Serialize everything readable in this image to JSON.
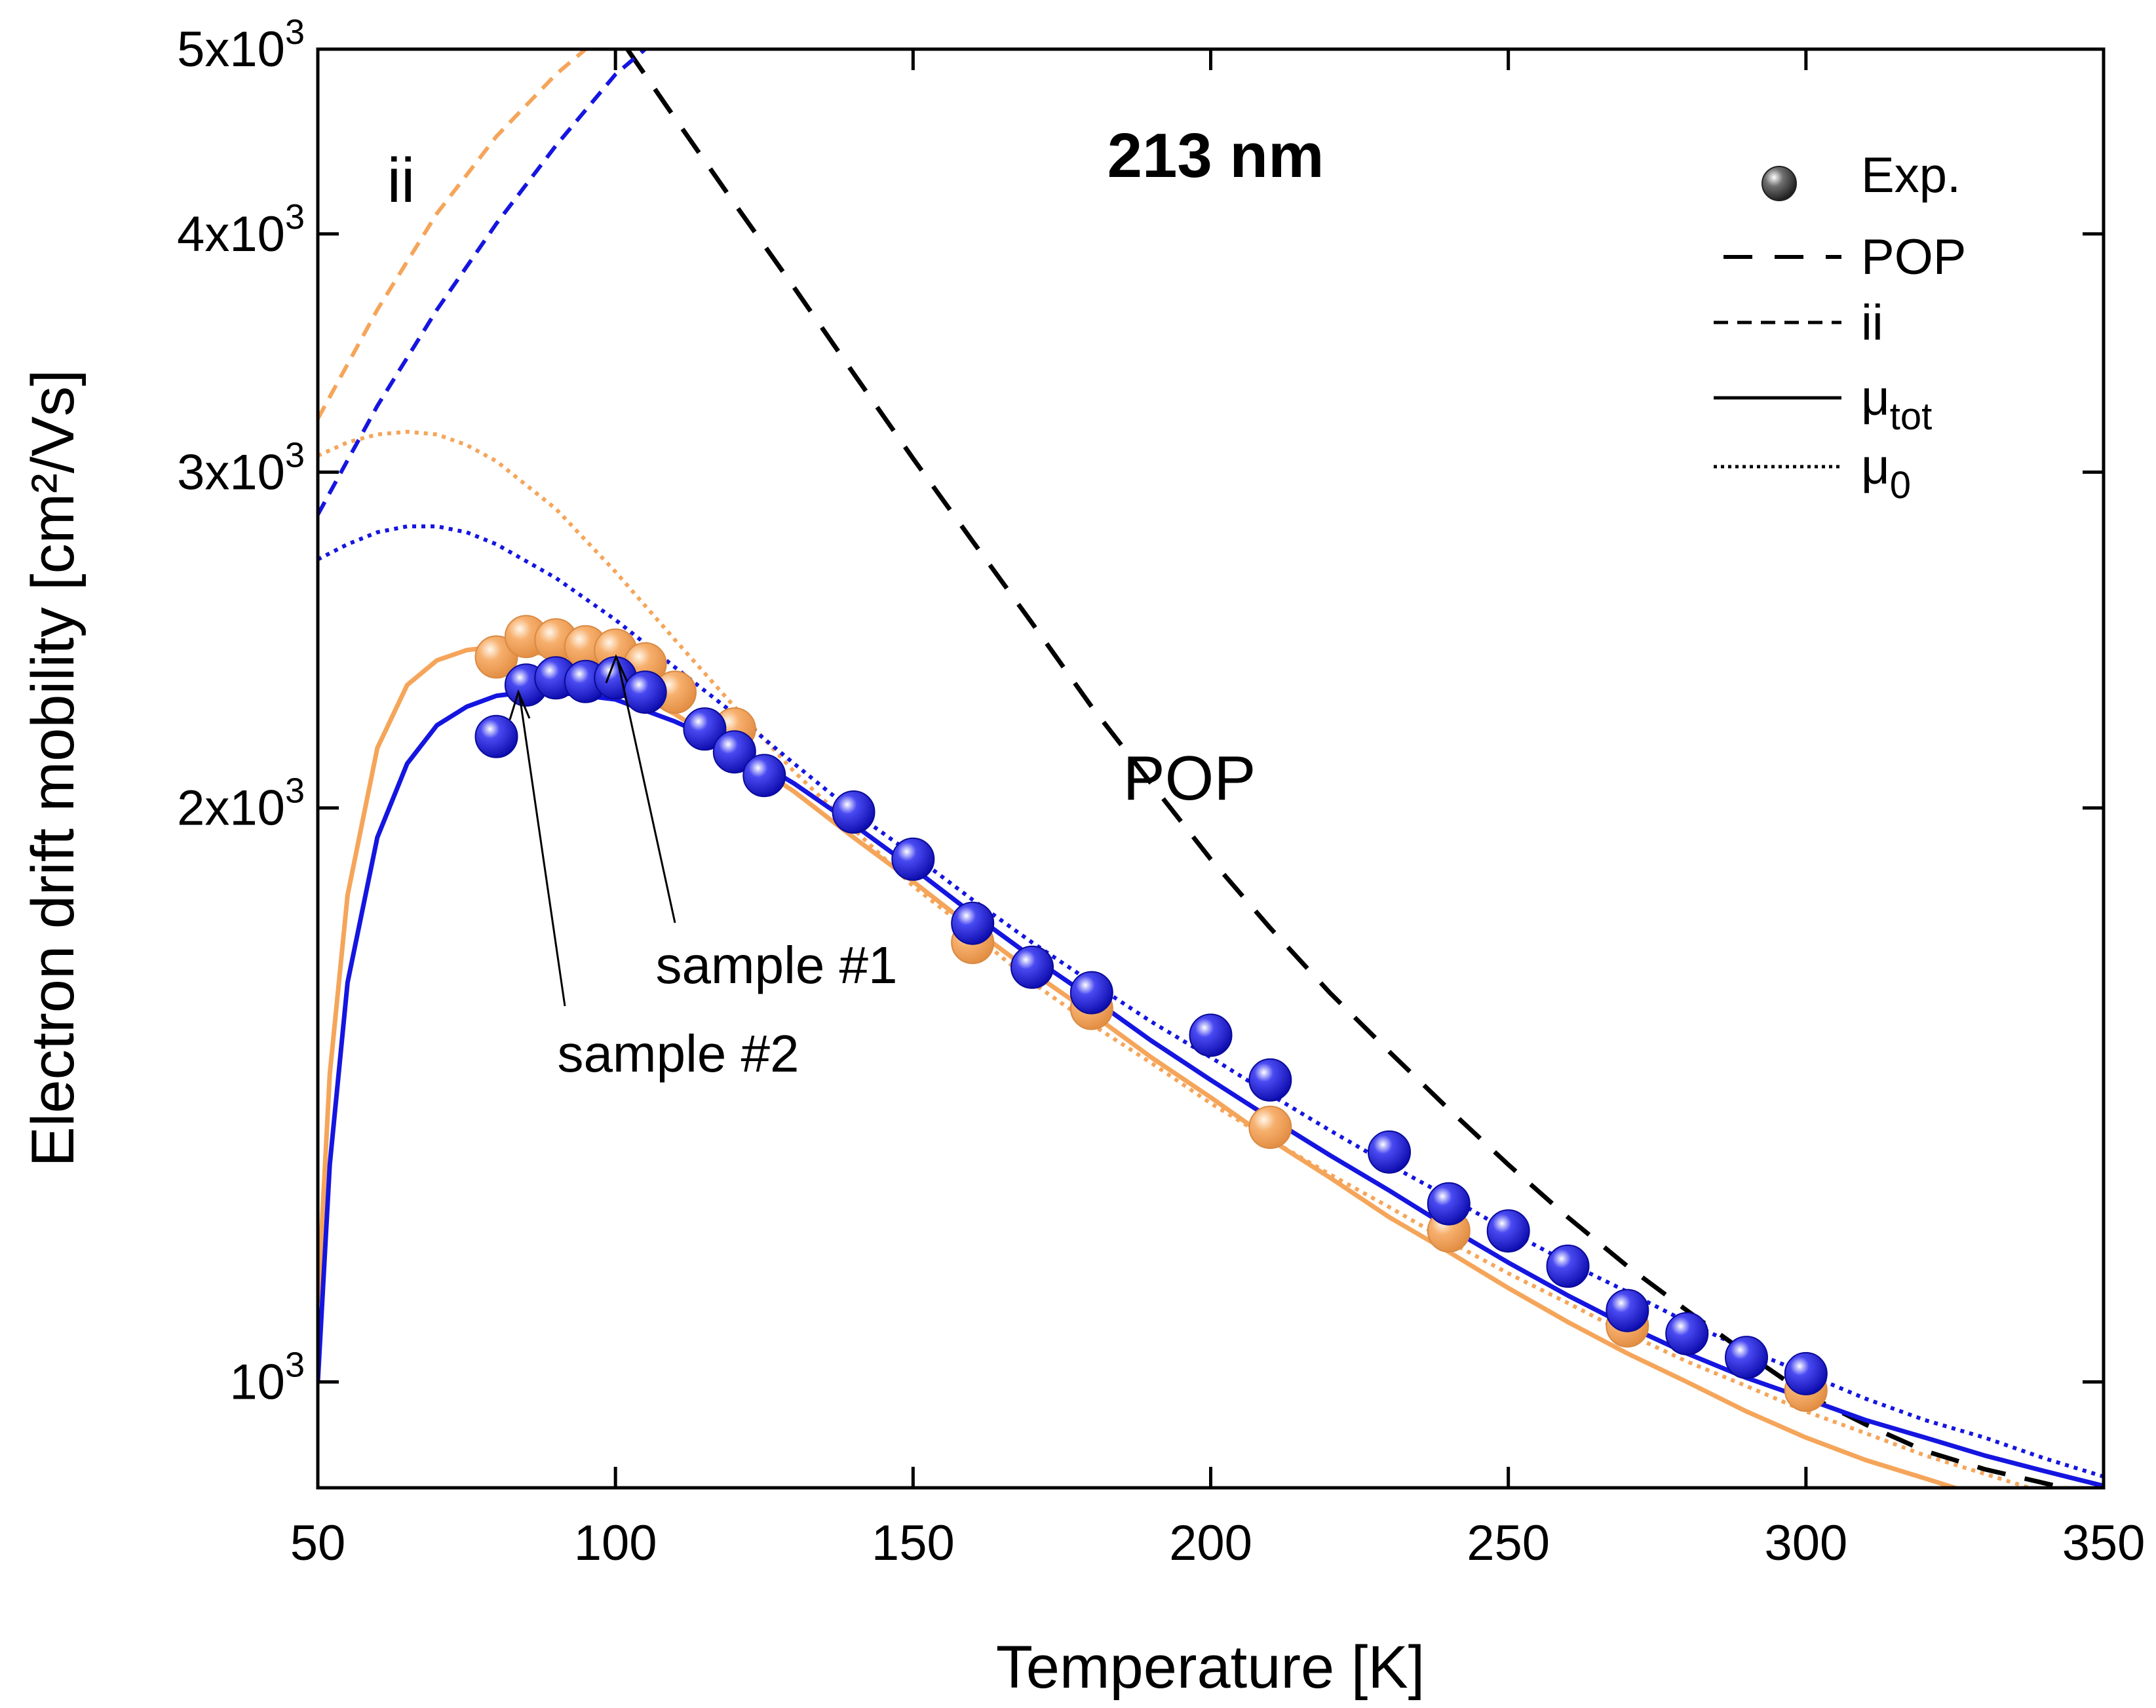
{
  "chart_data": {
    "type": "line",
    "title": "213 nm",
    "xlabel": "Temperature [K]",
    "ylabel": "Electron drift mobility [cm²/Vs]",
    "xlim": [
      50,
      350
    ],
    "ylim": [
      880,
      5000
    ],
    "yscale": "log",
    "x_ticks": [
      {
        "v": 50,
        "label": "50"
      },
      {
        "v": 100,
        "label": "100"
      },
      {
        "v": 150,
        "label": "150"
      },
      {
        "v": 200,
        "label": "200"
      },
      {
        "v": 250,
        "label": "250"
      },
      {
        "v": 300,
        "label": "300"
      },
      {
        "v": 350,
        "label": "350"
      }
    ],
    "y_ticks": [
      {
        "v": 1000,
        "mant": "",
        "exp": "3",
        "base": "10"
      },
      {
        "v": 2000,
        "mant": "2x",
        "exp": "3",
        "base": "10"
      },
      {
        "v": 3000,
        "mant": "3x",
        "exp": "3",
        "base": "10"
      },
      {
        "v": 4000,
        "mant": "4x",
        "exp": "3",
        "base": "10"
      },
      {
        "v": 5000,
        "mant": "5x",
        "exp": "3",
        "base": "10"
      }
    ],
    "legend": {
      "position": "top-right",
      "entries": [
        {
          "key": "exp",
          "label": "Exp.",
          "sub": ""
        },
        {
          "key": "pop",
          "label": "POP",
          "sub": ""
        },
        {
          "key": "ii",
          "label": "ii",
          "sub": ""
        },
        {
          "key": "tot",
          "label": "μ",
          "sub": "tot"
        },
        {
          "key": "mu0",
          "label": "μ",
          "sub": "0"
        }
      ]
    },
    "annotations": {
      "pop_label": "POP",
      "ii_label": "ii",
      "sample1_label": "sample #1",
      "sample2_label": "sample #2"
    },
    "colors": {
      "sample1": "#f5a55a",
      "sample2": "#1515e0",
      "pop": "#000000"
    },
    "series": [
      {
        "name": "POP",
        "style": "dashed",
        "color": "#000000",
        "x": [
          102,
          110,
          120,
          130,
          140,
          150,
          160,
          170,
          180,
          190,
          200,
          210,
          220,
          230,
          240,
          250,
          260,
          270,
          280,
          290,
          300,
          310,
          320,
          330,
          340,
          350
        ],
        "y": [
          5000,
          4600,
          4150,
          3750,
          3380,
          3050,
          2760,
          2500,
          2260,
          2060,
          1880,
          1730,
          1600,
          1490,
          1390,
          1300,
          1220,
          1150,
          1090,
          1035,
          985,
          950,
          920,
          900,
          885,
          870
        ]
      },
      {
        "name": "ii sample #1",
        "style": "dashed",
        "color": "#f5a55a",
        "x": [
          50,
          60,
          70,
          80,
          90,
          95
        ],
        "y": [
          3200,
          3650,
          4100,
          4500,
          4850,
          5000
        ]
      },
      {
        "name": "ii sample #2",
        "style": "dashed",
        "color": "#1515e0",
        "x": [
          50,
          60,
          70,
          80,
          90,
          100,
          105
        ],
        "y": [
          2850,
          3250,
          3650,
          4050,
          4450,
          4850,
          5000
        ]
      },
      {
        "name": "μtot sample #1",
        "style": "solid",
        "color": "#f5a55a",
        "x": [
          50,
          52,
          55,
          60,
          65,
          70,
          75,
          80,
          85,
          90,
          95,
          100,
          110,
          120,
          130,
          140,
          150,
          160,
          170,
          180,
          190,
          200,
          210,
          220,
          230,
          240,
          250,
          260,
          270,
          280,
          290,
          300,
          310,
          320,
          330,
          340
        ],
        "y": [
          1100,
          1450,
          1800,
          2150,
          2320,
          2390,
          2420,
          2430,
          2420,
          2400,
          2370,
          2330,
          2240,
          2140,
          2040,
          1930,
          1830,
          1730,
          1640,
          1560,
          1480,
          1410,
          1340,
          1280,
          1220,
          1170,
          1120,
          1075,
          1035,
          1000,
          965,
          935,
          910,
          890,
          870,
          855
        ]
      },
      {
        "name": "μtot sample #2",
        "style": "solid",
        "color": "#1515e0",
        "x": [
          50,
          52,
          55,
          60,
          65,
          70,
          75,
          80,
          85,
          90,
          95,
          100,
          110,
          120,
          130,
          140,
          150,
          160,
          170,
          180,
          190,
          200,
          210,
          220,
          230,
          240,
          250,
          260,
          270,
          280,
          290,
          300,
          310,
          320,
          330,
          340,
          350
        ],
        "y": [
          1000,
          1300,
          1620,
          1930,
          2110,
          2210,
          2260,
          2290,
          2300,
          2300,
          2290,
          2280,
          2220,
          2150,
          2060,
          1960,
          1860,
          1760,
          1670,
          1590,
          1510,
          1440,
          1375,
          1315,
          1260,
          1205,
          1155,
          1110,
          1070,
          1035,
          1005,
          980,
          955,
          935,
          915,
          898,
          882
        ]
      },
      {
        "name": "μ0 sample #1",
        "style": "dotted",
        "color": "#f5a55a",
        "x": [
          50,
          55,
          60,
          65,
          70,
          75,
          80,
          90,
          100,
          110,
          120,
          130,
          140,
          150,
          160,
          170,
          180,
          190,
          200,
          210,
          220,
          230,
          240,
          250,
          260,
          270,
          280,
          290,
          300,
          310,
          320,
          330,
          340
        ],
        "y": [
          3060,
          3110,
          3140,
          3150,
          3140,
          3100,
          3040,
          2870,
          2660,
          2450,
          2260,
          2090,
          1950,
          1820,
          1720,
          1620,
          1540,
          1470,
          1400,
          1340,
          1285,
          1235,
          1185,
          1140,
          1100,
          1060,
          1025,
          995,
          965,
          940,
          915,
          895,
          875
        ]
      },
      {
        "name": "μ0 sample #2",
        "style": "dotted",
        "color": "#1515e0",
        "x": [
          50,
          55,
          60,
          65,
          70,
          75,
          80,
          90,
          100,
          110,
          120,
          130,
          140,
          150,
          160,
          170,
          180,
          190,
          200,
          210,
          220,
          230,
          240,
          250,
          260,
          270,
          280,
          290,
          300,
          310,
          320,
          330,
          340,
          350
        ],
        "y": [
          2700,
          2750,
          2790,
          2810,
          2810,
          2790,
          2750,
          2640,
          2510,
          2370,
          2240,
          2110,
          1990,
          1890,
          1790,
          1700,
          1620,
          1545,
          1480,
          1415,
          1355,
          1300,
          1250,
          1200,
          1155,
          1115,
          1075,
          1040,
          1010,
          980,
          955,
          935,
          912,
          892
        ]
      },
      {
        "name": "Exp. sample #1",
        "style": "markers",
        "color": "#f5a55a",
        "x": [
          80,
          85,
          90,
          95,
          100,
          105,
          110,
          120,
          160,
          180,
          210,
          240,
          270,
          300
        ],
        "y": [
          2400,
          2460,
          2450,
          2430,
          2420,
          2380,
          2300,
          2200,
          1700,
          1570,
          1360,
          1200,
          1070,
          990
        ]
      },
      {
        "name": "Exp. sample #2",
        "style": "markers",
        "color": "#1515e0",
        "x": [
          80,
          85,
          90,
          95,
          100,
          105,
          115,
          120,
          125,
          140,
          150,
          160,
          170,
          180,
          200,
          210,
          230,
          240,
          250,
          260,
          270,
          280,
          290,
          300
        ],
        "y": [
          2180,
          2320,
          2340,
          2330,
          2340,
          2300,
          2200,
          2140,
          2080,
          1990,
          1880,
          1740,
          1650,
          1600,
          1520,
          1440,
          1320,
          1240,
          1200,
          1150,
          1090,
          1060,
          1030,
          1010
        ]
      }
    ]
  }
}
